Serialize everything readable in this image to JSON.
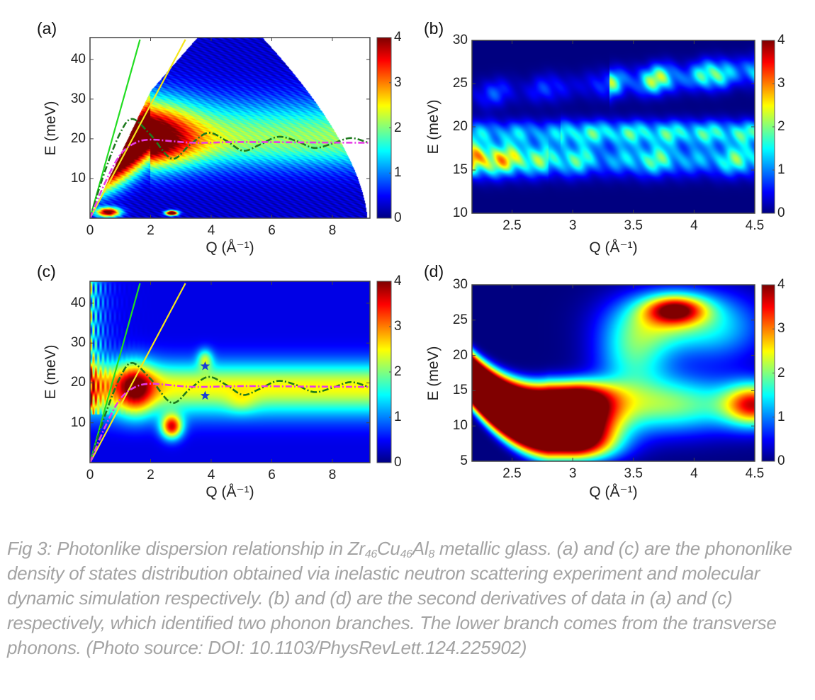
{
  "colormap": "jet",
  "colors": {
    "green_line": "#22dd22",
    "yellow_line": "#f5e61a",
    "dashdot_green": "#1e7a1e",
    "magenta": "#e63be6",
    "star": "#1a3fd6",
    "caption": "#a3a3a3"
  },
  "chart_data": [
    {
      "panel": "(a)",
      "type": "heatmap",
      "xlabel": "Q (Å⁻¹)",
      "ylabel": "E (meV)",
      "xlim": [
        0,
        9.24
      ],
      "ylim": [
        0,
        45.5
      ],
      "xticks": [
        0,
        2,
        4,
        6,
        8
      ],
      "yticks": [
        10,
        20,
        30,
        40
      ],
      "colorbar": {
        "range": [
          0,
          4
        ],
        "ticks": [
          0,
          1,
          2,
          3,
          4
        ]
      },
      "lines": [
        {
          "style": "solid",
          "color": "green_line",
          "x": [
            0,
            1.65
          ],
          "y": [
            0,
            45
          ]
        },
        {
          "style": "solid",
          "color": "yellow_line",
          "x": [
            0,
            3.15
          ],
          "y": [
            0,
            45
          ]
        },
        {
          "style": "dash-dot",
          "color": "dashdot_green",
          "x": [
            0,
            0.5,
            1,
            1.4,
            2,
            2.7,
            3.3,
            3.9,
            4.5,
            5.05,
            5.6,
            6.2,
            6.8,
            7.4,
            8,
            8.6,
            9.2
          ],
          "y": [
            0,
            12,
            21.5,
            25,
            21,
            15,
            18.5,
            21.5,
            19.5,
            17,
            18.5,
            20.5,
            19.5,
            17.7,
            18.8,
            20.2,
            19
          ]
        },
        {
          "style": "dash-dot",
          "color": "magenta",
          "x": [
            0,
            0.5,
            1,
            1.5,
            2,
            2.7,
            3.5,
            5,
            7,
            9.2
          ],
          "y": [
            0,
            9,
            16,
            19,
            19.8,
            19.4,
            19,
            19.2,
            19.1,
            19
          ]
        }
      ]
    },
    {
      "panel": "(b)",
      "type": "heatmap",
      "xlabel": "Q (Å⁻¹)",
      "ylabel": "E (meV)",
      "xlim": [
        2.17,
        4.5
      ],
      "ylim": [
        10,
        30
      ],
      "xticks": [
        2.5,
        3,
        3.5,
        4,
        4.5
      ],
      "yticks": [
        10,
        15,
        20,
        25,
        30
      ],
      "colorbar": {
        "range": [
          0,
          4
        ],
        "ticks": [
          0,
          1,
          2,
          3,
          4
        ]
      }
    },
    {
      "panel": "(c)",
      "type": "heatmap",
      "xlabel": "Q (Å⁻¹)",
      "ylabel": "E (meV)",
      "xlim": [
        0,
        9.24
      ],
      "ylim": [
        0,
        45.5
      ],
      "xticks": [
        0,
        2,
        4,
        6,
        8
      ],
      "yticks": [
        10,
        20,
        30,
        40
      ],
      "colorbar": {
        "range": [
          0,
          4
        ],
        "ticks": [
          0,
          1,
          2,
          3,
          4
        ]
      },
      "lines": [
        {
          "style": "solid",
          "color": "green_line",
          "x": [
            0,
            1.65
          ],
          "y": [
            0,
            45
          ]
        },
        {
          "style": "solid",
          "color": "yellow_line",
          "x": [
            0,
            3.15
          ],
          "y": [
            0,
            45
          ]
        },
        {
          "style": "dash-dot",
          "color": "dashdot_green",
          "x": [
            0,
            0.5,
            1,
            1.4,
            2,
            2.7,
            3.3,
            3.9,
            4.5,
            5.05,
            5.6,
            6.2,
            6.8,
            7.4,
            8,
            8.6,
            9.2
          ],
          "y": [
            0,
            12,
            21.5,
            25,
            21,
            15,
            18.5,
            21.5,
            19.5,
            17,
            18.5,
            20.5,
            19.5,
            17.7,
            18.8,
            20.2,
            19
          ]
        },
        {
          "style": "dash-dot",
          "color": "magenta",
          "x": [
            0,
            0.5,
            1,
            1.5,
            2,
            2.7,
            3.5,
            5,
            7,
            9.2
          ],
          "y": [
            0,
            9,
            16,
            19,
            19.8,
            19.4,
            19,
            19.2,
            19.1,
            19
          ]
        }
      ],
      "markers": [
        {
          "shape": "star",
          "x": 3.8,
          "y": 24.2
        },
        {
          "shape": "star",
          "x": 3.8,
          "y": 16.8
        }
      ]
    },
    {
      "panel": "(d)",
      "type": "heatmap",
      "xlabel": "Q (Å⁻¹)",
      "ylabel": "E (meV)",
      "xlim": [
        2.17,
        4.5
      ],
      "ylim": [
        5,
        30
      ],
      "xticks": [
        2.5,
        3,
        3.5,
        4,
        4.5
      ],
      "yticks": [
        5,
        10,
        15,
        20,
        25,
        30
      ],
      "colorbar": {
        "range": [
          0,
          4
        ],
        "ticks": [
          0,
          1,
          2,
          3,
          4
        ]
      }
    }
  ],
  "caption": {
    "p1": "Fig 3: Photonlike dispersion relationship in Zr",
    "s1": "46",
    "p2": "Cu",
    "s2": "46",
    "p3": "Al",
    "s3": "8",
    "p4": " metallic glass. (a) and (c) are the phononlike density of states distribution obtained via inelastic neutron scattering experiment and molecular dynamic simulation respectively. (b) and (d) are the second derivatives of data in (a) and (c) respectively, which identified two phonon branches.  The lower branch comes from the transverse phonons. (Photo source: DOI: 10.1103/PhysRevLett.124.225902)"
  }
}
